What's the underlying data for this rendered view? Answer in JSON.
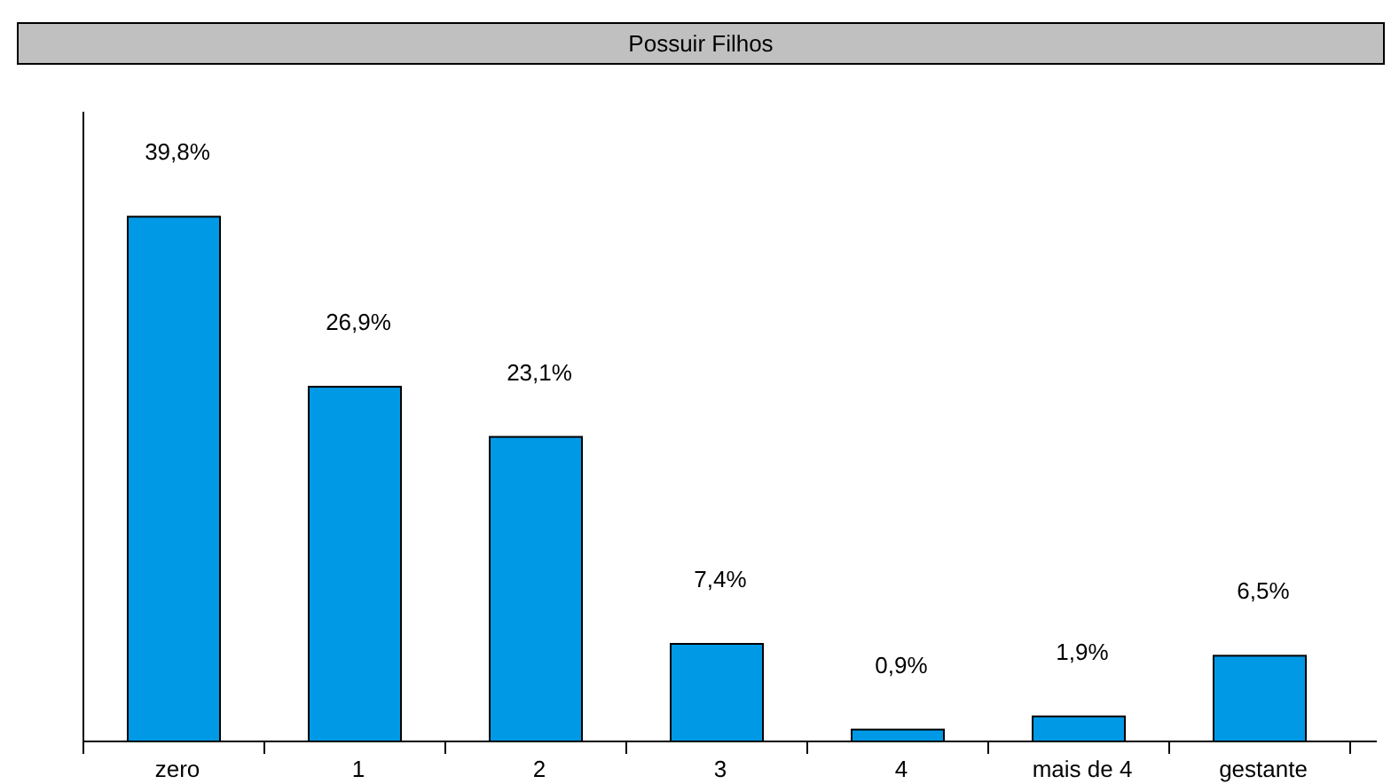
{
  "chart_data": {
    "type": "bar",
    "title": "Possuir Filhos",
    "categories": [
      "zero",
      "1",
      "2",
      "3",
      "4",
      "mais de 4",
      "gestante"
    ],
    "values": [
      39.8,
      26.9,
      23.1,
      7.4,
      0.9,
      1.9,
      6.5
    ],
    "value_labels": [
      "39,8%",
      "26,9%",
      "23,1%",
      "7,4%",
      "0,9%",
      "1,9%",
      "6,5%"
    ],
    "color": "#0099e6"
  }
}
